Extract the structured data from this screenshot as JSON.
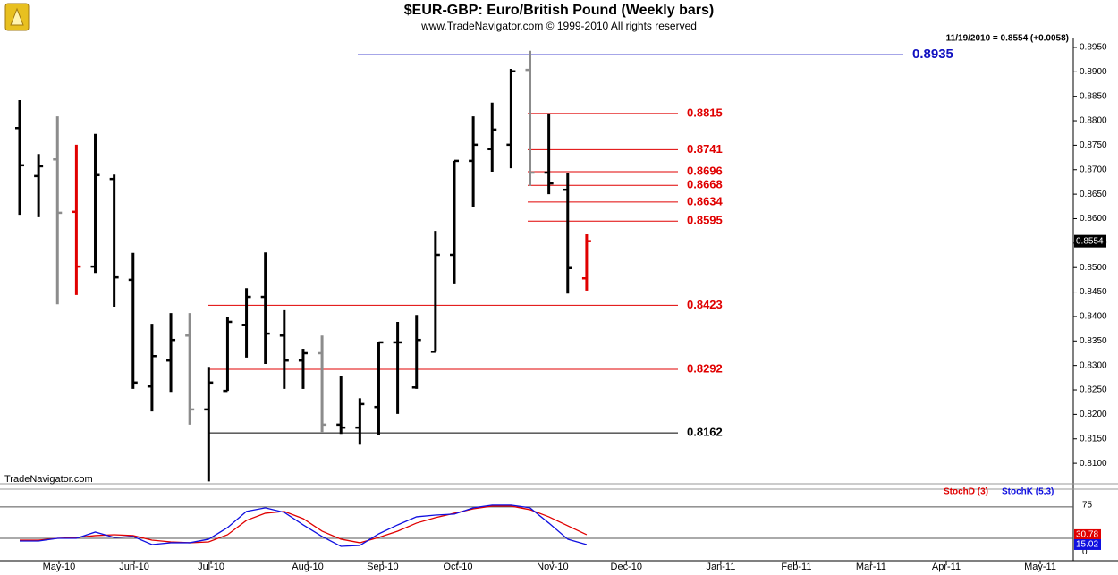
{
  "chart_data": [
    {
      "type": "ohlc",
      "title": "$EUR-GBP:  Euro/British Pound  (Weekly bars)",
      "subtitle": "www.TradeNavigator.com © 1999-2010 All rights reserved",
      "header": "11/19/2010 = 0.8554 (+0.0058)",
      "watermark": "TradeNavigator.com",
      "categories": [
        null,
        null,
        null,
        null,
        null,
        null,
        null,
        null,
        null,
        null,
        null,
        null,
        null,
        null,
        null,
        null,
        null,
        null,
        null,
        null,
        null,
        null,
        null,
        null,
        null,
        null,
        null,
        null,
        null,
        null,
        null
      ],
      "open": [
        0.8785,
        0.8687,
        0.8721,
        0.8614,
        0.8502,
        0.8681,
        0.8475,
        0.8257,
        0.831,
        0.8361,
        0.821,
        0.8248,
        0.8383,
        0.844,
        0.8361,
        0.831,
        0.8325,
        0.8179,
        0.8173,
        0.8215,
        0.8347,
        0.8255,
        0.8328,
        0.8526,
        0.8718,
        0.8742,
        0.8751,
        0.8904,
        0.8694,
        0.8659,
        0.8478
      ],
      "high": [
        0.8842,
        0.8732,
        0.8809,
        0.8751,
        0.8773,
        0.869,
        0.853,
        0.8385,
        0.8407,
        0.8407,
        0.8297,
        0.8398,
        0.8458,
        0.8531,
        0.8413,
        0.8334,
        0.8361,
        0.8279,
        0.8233,
        0.8347,
        0.8389,
        0.8403,
        0.8575,
        0.8718,
        0.8809,
        0.8837,
        0.8906,
        0.8943,
        0.8815,
        0.8694,
        0.8568
      ],
      "low": [
        0.8608,
        0.8603,
        0.8425,
        0.8444,
        0.8489,
        0.842,
        0.8252,
        0.8206,
        0.8246,
        0.8179,
        0.8063,
        0.8248,
        0.8316,
        0.8303,
        0.8252,
        0.8252,
        0.8164,
        0.816,
        0.8138,
        0.8157,
        0.8201,
        0.8252,
        0.8328,
        0.8466,
        0.8623,
        0.8696,
        0.8703,
        0.8667,
        0.865,
        0.8447,
        0.8453
      ],
      "close": [
        0.8709,
        0.8707,
        0.8612,
        0.8502,
        0.8689,
        0.848,
        0.8265,
        0.8319,
        0.8352,
        0.821,
        0.8265,
        0.8389,
        0.844,
        0.8365,
        0.831,
        0.8325,
        0.8179,
        0.8173,
        0.8221,
        0.8347,
        0.8347,
        0.8352,
        0.8526,
        0.8718,
        0.8751,
        0.8782,
        0.8901,
        0.8694,
        0.8672,
        0.8499,
        0.8554
      ],
      "bar_colors": [
        "#000000",
        "#000000",
        "#8c8c8c",
        "#e00000",
        "#000000",
        "#000000",
        "#000000",
        "#000000",
        "#000000",
        "#8c8c8c",
        "#000000",
        "#000000",
        "#000000",
        "#000000",
        "#000000",
        "#000000",
        "#8c8c8c",
        "#000000",
        "#000000",
        "#000000",
        "#000000",
        "#000000",
        "#000000",
        "#000000",
        "#000000",
        "#000000",
        "#000000",
        "#8c8c8c",
        "#000000",
        "#000000",
        "#e00000"
      ],
      "levels": [
        {
          "value": 0.8935,
          "color": "#1010c0"
        },
        {
          "value": 0.8815,
          "color": "#e00000"
        },
        {
          "value": 0.8741,
          "color": "#e00000"
        },
        {
          "value": 0.8696,
          "color": "#e00000"
        },
        {
          "value": 0.8668,
          "color": "#e00000"
        },
        {
          "value": 0.8634,
          "color": "#e00000"
        },
        {
          "value": 0.8595,
          "color": "#e00000"
        },
        {
          "value": 0.8423,
          "color": "#e00000"
        },
        {
          "value": 0.8292,
          "color": "#e00000"
        },
        {
          "value": 0.8162,
          "color": "#000000"
        }
      ],
      "ylim": [
        0.806,
        0.897
      ],
      "yticks": [
        {
          "value": 0.81,
          "label": "0.8100"
        },
        {
          "value": 0.815,
          "label": "0.8150"
        },
        {
          "value": 0.82,
          "label": "0.8200"
        },
        {
          "value": 0.825,
          "label": "0.8250"
        },
        {
          "value": 0.83,
          "label": "0.8300"
        },
        {
          "value": 0.835,
          "label": "0.8350"
        },
        {
          "value": 0.84,
          "label": "0.8400"
        },
        {
          "value": 0.845,
          "label": "0.8450"
        },
        {
          "value": 0.85,
          "label": "0.8500"
        },
        {
          "value": 0.855,
          "label": "0.8550"
        },
        {
          "value": 0.86,
          "label": "0.8600"
        },
        {
          "value": 0.865,
          "label": "0.8650"
        },
        {
          "value": 0.87,
          "label": "0.8700"
        },
        {
          "value": 0.875,
          "label": "0.8750"
        },
        {
          "value": 0.88,
          "label": "0.8800"
        },
        {
          "value": 0.885,
          "label": "0.8850"
        },
        {
          "value": 0.89,
          "label": "0.8900"
        },
        {
          "value": 0.895,
          "label": "0.8950"
        }
      ]
    },
    {
      "type": "line",
      "series": [
        {
          "name": "StochD (3)",
          "color": "#e00000",
          "values": [
            22.1,
            22.1,
            25,
            26.4,
            29.3,
            30.7,
            29.3,
            22.1,
            19.3,
            17.9,
            19.3,
            30.7,
            53.6,
            65,
            67.9,
            56.4,
            36.4,
            23.6,
            17.9,
            26.4,
            36.4,
            49.3,
            57.9,
            65,
            72.1,
            76.4,
            76.4,
            70.7,
            59.3,
            45,
            30.78
          ]
        },
        {
          "name": "StochK (5,3)",
          "color": "#1010e0",
          "values": [
            20.7,
            20.7,
            25,
            25,
            35,
            26.4,
            27.9,
            15,
            17.9,
            17.9,
            23.6,
            42.1,
            67.9,
            73.6,
            66.4,
            46.4,
            27.9,
            12.1,
            13.6,
            32.1,
            46.4,
            59.3,
            62.1,
            63.6,
            73.6,
            77.9,
            77.9,
            73.6,
            49.3,
            23.6,
            15.02
          ]
        }
      ],
      "hlines": [
        75,
        25
      ],
      "ylim": [
        -10,
        102
      ],
      "yticks": [
        0,
        75
      ],
      "xticks": [
        {
          "value": 2.08,
          "label": "May-10"
        },
        {
          "value": 6.06,
          "label": "Jun-10"
        },
        {
          "value": 10.13,
          "label": "Jul-10"
        },
        {
          "value": 15.24,
          "label": "Aug-10"
        },
        {
          "value": 19.21,
          "label": "Sep-10"
        },
        {
          "value": 23.19,
          "label": "Oct-10"
        },
        {
          "value": 28.2,
          "label": "Nov-10"
        },
        {
          "value": 32.1,
          "label": "Dec-10"
        },
        {
          "value": 37.1,
          "label": "Jan-11"
        },
        {
          "value": 41.1,
          "label": "Feb-11"
        },
        {
          "value": 45.05,
          "label": "Mar-11"
        },
        {
          "value": 49.03,
          "label": "Apr-11"
        },
        {
          "value": 54.0,
          "label": "May-11"
        }
      ]
    }
  ]
}
